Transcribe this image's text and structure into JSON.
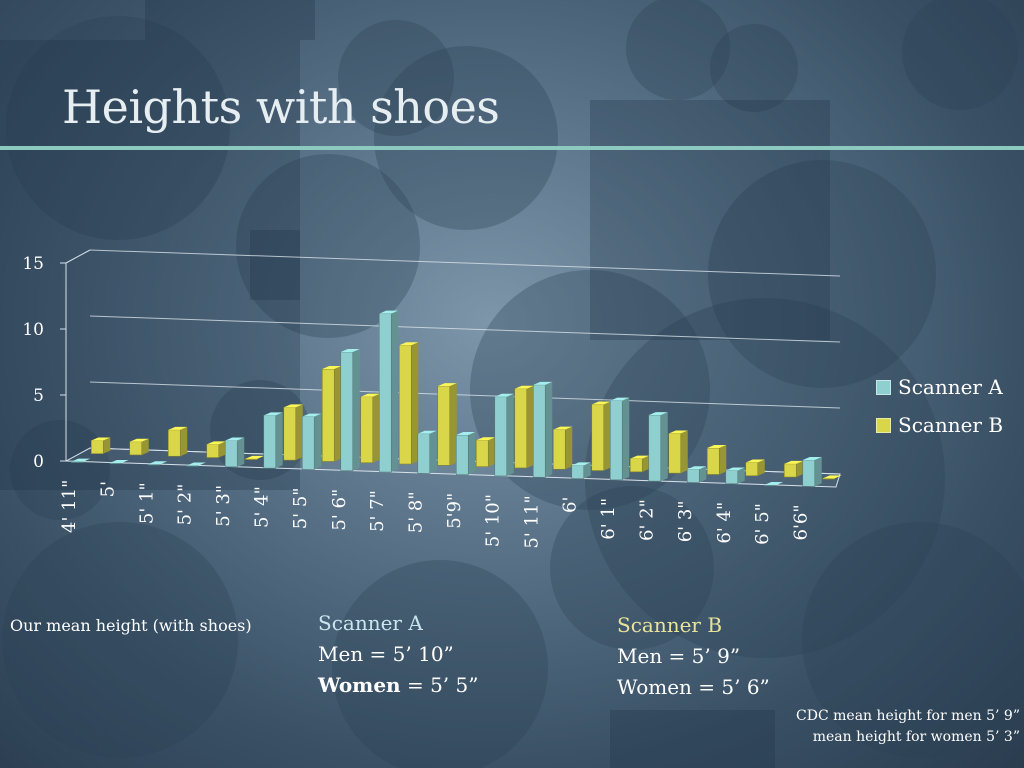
{
  "title": "Heights  with shoes",
  "colors": {
    "rule": "#8cc9be",
    "scanner_a": "#8fcfcf",
    "scanner_b": "#d9d64a",
    "scanner_a_header": "#c9e6f0",
    "scanner_b_header": "#e9e39a",
    "axis_text": "#ffffff"
  },
  "chart_data": {
    "type": "bar",
    "title": "",
    "xlabel": "",
    "ylabel": "",
    "ylim": [
      0,
      15
    ],
    "yticks": [
      0,
      5,
      10,
      15
    ],
    "grid": true,
    "legend_position": "right",
    "categories": [
      "4' 11\"",
      "5'",
      "5' 1\"",
      "5' 2\"",
      "5' 3\"",
      "5' 4\"",
      "5' 5\"",
      "5' 6\"",
      "5' 7\"",
      "5' 8\"",
      "5'9\"",
      "5' 10\"",
      "5' 11\"",
      "6'",
      "6' 1\"",
      "6' 2\"",
      "6' 3\"",
      "6' 4\"",
      "6' 5\"",
      "6'6\""
    ],
    "series": [
      {
        "name": "Scanner A",
        "values": [
          0,
          0,
          0,
          0,
          2,
          4,
          4,
          9,
          12,
          3,
          3,
          6,
          7,
          1,
          6,
          5,
          1,
          1,
          0,
          2
        ]
      },
      {
        "name": "Scanner B",
        "values": [
          1,
          1,
          2,
          1,
          0,
          4,
          7,
          5,
          9,
          6,
          2,
          6,
          3,
          5,
          1,
          3,
          2,
          1,
          1,
          0
        ]
      }
    ]
  },
  "notes": {
    "left": "Our mean height (with shoes)",
    "scanner_a": {
      "header": "Scanner A",
      "men": "Men = 5’ 10”",
      "women_label": "Women",
      "women_value": " = 5’ 5”"
    },
    "scanner_b": {
      "header": "Scanner B",
      "men": "Men = 5’ 9”",
      "women": "Women = 5’ 6”"
    },
    "cdc": {
      "line1": "CDC mean height for men 5’ 9”",
      "line2": "mean height for women 5’ 3”"
    }
  }
}
